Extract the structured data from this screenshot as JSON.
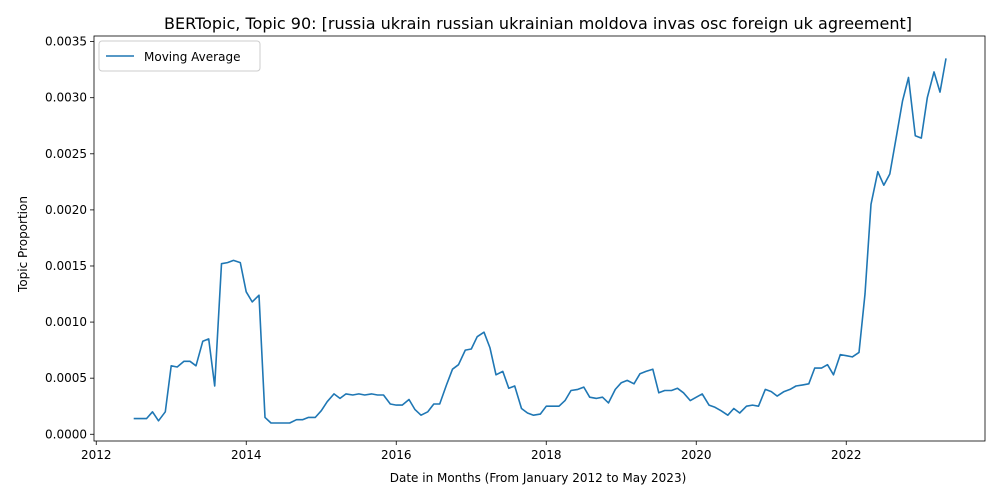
{
  "chart_data": {
    "type": "line",
    "title": "BERTopic, Topic 90: [russia ukrain russian ukrainian moldova invas osc foreign uk agreement]",
    "xlabel": "Date in Months (From January 2012 to May 2023)",
    "ylabel": "Topic Proportion",
    "xlim": [
      2011.97,
      2023.85
    ],
    "ylim": [
      -6e-05,
      0.00355
    ],
    "xticks": [
      2012,
      2014,
      2016,
      2018,
      2020,
      2022
    ],
    "xtick_labels": [
      "2012",
      "2014",
      "2016",
      "2018",
      "2020",
      "2022"
    ],
    "yticks": [
      0,
      0.0005,
      0.001,
      0.0015,
      0.002,
      0.0025,
      0.003,
      0.0035
    ],
    "ytick_labels": [
      "0.0000",
      "0.0005",
      "0.0010",
      "0.0015",
      "0.0020",
      "0.0025",
      "0.0030",
      "0.0035"
    ],
    "grid": false,
    "legend": {
      "position": "top-left",
      "entries": [
        "Moving Average"
      ]
    },
    "colors": {
      "series": "#1f77b4"
    },
    "series": [
      {
        "name": "Moving Average",
        "x": [
          2012.5,
          2012.58,
          2012.67,
          2012.75,
          2012.83,
          2012.92,
          2013.0,
          2013.08,
          2013.17,
          2013.25,
          2013.33,
          2013.42,
          2013.5,
          2013.58,
          2013.67,
          2013.75,
          2013.83,
          2013.92,
          2014.0,
          2014.08,
          2014.17,
          2014.25,
          2014.33,
          2014.42,
          2014.5,
          2014.58,
          2014.67,
          2014.75,
          2014.83,
          2014.92,
          2015.0,
          2015.08,
          2015.17,
          2015.25,
          2015.33,
          2015.42,
          2015.5,
          2015.58,
          2015.67,
          2015.75,
          2015.83,
          2015.92,
          2016.0,
          2016.08,
          2016.17,
          2016.25,
          2016.33,
          2016.42,
          2016.5,
          2016.58,
          2016.67,
          2016.75,
          2016.83,
          2016.92,
          2017.0,
          2017.08,
          2017.17,
          2017.25,
          2017.33,
          2017.42,
          2017.5,
          2017.58,
          2017.67,
          2017.75,
          2017.83,
          2017.92,
          2018.0,
          2018.08,
          2018.17,
          2018.25,
          2018.33,
          2018.42,
          2018.5,
          2018.58,
          2018.67,
          2018.75,
          2018.83,
          2018.92,
          2019.0,
          2019.08,
          2019.17,
          2019.25,
          2019.33,
          2019.42,
          2019.5,
          2019.58,
          2019.67,
          2019.75,
          2019.83,
          2019.92,
          2020.0,
          2020.08,
          2020.17,
          2020.25,
          2020.33,
          2020.42,
          2020.5,
          2020.58,
          2020.67,
          2020.75,
          2020.83,
          2020.92,
          2021.0,
          2021.08,
          2021.17,
          2021.25,
          2021.33,
          2021.42,
          2021.5,
          2021.58,
          2021.67,
          2021.75,
          2021.83,
          2021.92,
          2022.0,
          2022.08,
          2022.17,
          2022.25,
          2022.33,
          2022.42,
          2022.5,
          2022.58,
          2022.67,
          2022.75,
          2022.83,
          2022.92,
          2023.0,
          2023.08,
          2023.17,
          2023.25,
          2023.33
        ],
        "values": [
          0.00014,
          0.00014,
          0.00014,
          0.0002,
          0.00012,
          0.0002,
          0.00061,
          0.0006,
          0.00065,
          0.00065,
          0.00061,
          0.00083,
          0.00085,
          0.00043,
          0.00152,
          0.00153,
          0.00155,
          0.00153,
          0.00127,
          0.00118,
          0.00124,
          0.00015,
          0.0001,
          0.0001,
          0.0001,
          0.0001,
          0.00013,
          0.00013,
          0.00015,
          0.00015,
          0.00021,
          0.00029,
          0.00036,
          0.00032,
          0.00036,
          0.00035,
          0.00036,
          0.00035,
          0.00036,
          0.00035,
          0.00035,
          0.00027,
          0.00026,
          0.00026,
          0.00031,
          0.00022,
          0.00017,
          0.0002,
          0.00027,
          0.00027,
          0.00044,
          0.00058,
          0.00062,
          0.00075,
          0.00076,
          0.00087,
          0.00091,
          0.00077,
          0.00053,
          0.00056,
          0.00041,
          0.00043,
          0.00023,
          0.00019,
          0.00017,
          0.00018,
          0.00025,
          0.00025,
          0.00025,
          0.0003,
          0.00039,
          0.0004,
          0.00042,
          0.00033,
          0.00032,
          0.00033,
          0.00028,
          0.0004,
          0.00046,
          0.00048,
          0.00045,
          0.00054,
          0.00056,
          0.00058,
          0.00037,
          0.00039,
          0.00039,
          0.00041,
          0.00037,
          0.0003,
          0.00033,
          0.00036,
          0.00026,
          0.00024,
          0.00021,
          0.00017,
          0.00023,
          0.00019,
          0.00025,
          0.00026,
          0.00025,
          0.0004,
          0.00038,
          0.00034,
          0.00038,
          0.0004,
          0.00043,
          0.00044,
          0.00045,
          0.00059,
          0.00059,
          0.00062,
          0.00053,
          0.00071,
          0.0007,
          0.00069,
          0.00073,
          0.00125,
          0.00205,
          0.00234,
          0.00222,
          0.00232,
          0.00266,
          0.00297,
          0.00318,
          0.00266,
          0.00264,
          0.003,
          0.00323,
          0.00305,
          0.00335
        ]
      }
    ]
  }
}
